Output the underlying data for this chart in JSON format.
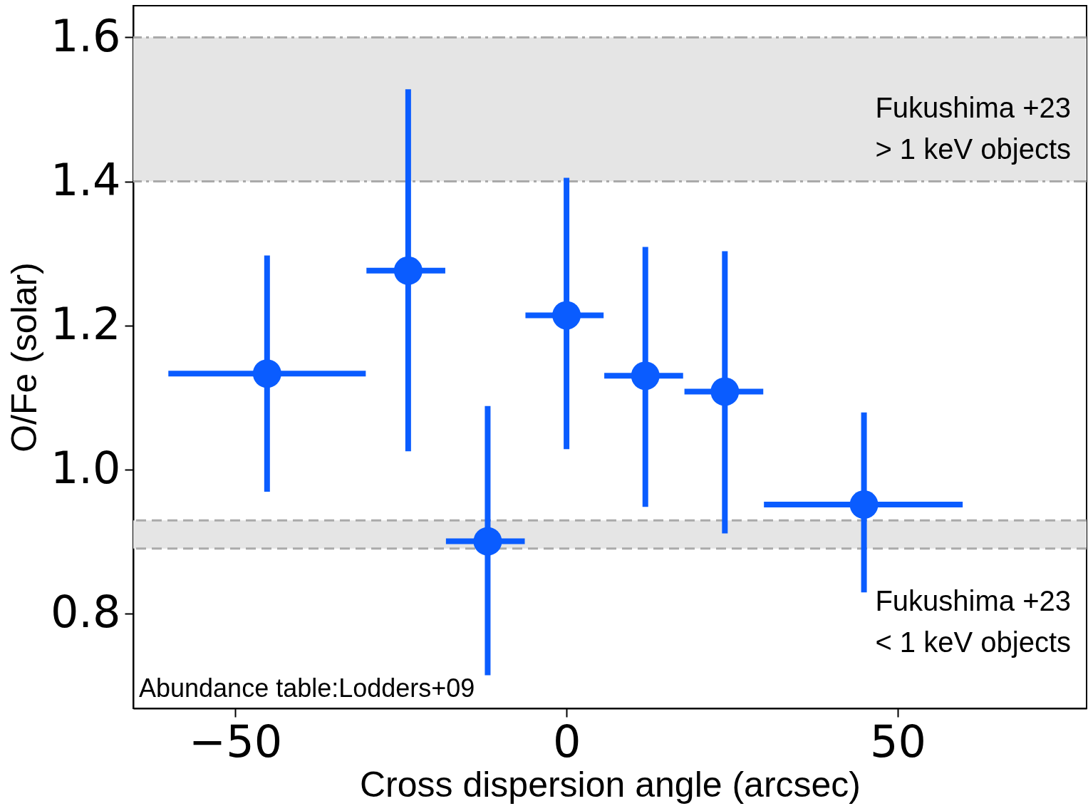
{
  "chart_data": {
    "type": "scatter",
    "xlabel": "Cross dispersion angle (arcsec)",
    "ylabel": "O/Fe (solar)",
    "xlim": [
      -65.4,
      78.5
    ],
    "ylim": [
      0.668,
      1.644
    ],
    "xticks": [
      {
        "value": -50,
        "label": "−50"
      },
      0,
      50
    ],
    "yticks": [
      0.8,
      {
        "value": 1,
        "label": "1.0"
      },
      1.2,
      1.4,
      1.6
    ],
    "marker": "circle",
    "series": [
      {
        "color": "#0a5cff",
        "x": [
          -45.2,
          -23.9,
          -11.9,
          0,
          11.9,
          23.9,
          44.9
        ],
        "values": [
          1.133,
          1.276,
          0.9,
          1.214,
          1.13,
          1.108,
          0.951
        ],
        "errors": [
          [
            0.969,
            1.297
          ],
          [
            1.025,
            1.528
          ],
          [
            0.714,
            1.088
          ],
          [
            1.028,
            1.405
          ],
          [
            0.948,
            1.309
          ],
          [
            0.911,
            1.303
          ],
          [
            0.829,
            1.079
          ]
        ],
        "xerrors": [
          [
            -60.1,
            -30.3
          ],
          [
            -30.2,
            -18.3
          ],
          [
            -18.2,
            -6.3
          ],
          [
            -6.2,
            5.6
          ],
          [
            5.7,
            17.6
          ],
          [
            17.8,
            29.7
          ],
          [
            29.8,
            59.8
          ]
        ]
      }
    ],
    "bands": [
      {
        "axis": "y",
        "from": 1.4,
        "to": 1.6,
        "label": "Fukushima +23\n> 1 keV objects",
        "color": "#e5e5e5"
      },
      {
        "axis": "y",
        "from": 0.89,
        "to": 0.929,
        "label": "Fukushima +23\n< 1 keV objects",
        "color": "#e5e5e5"
      }
    ],
    "ref_lines": [
      {
        "axis": "y",
        "value": 1.4,
        "color": "#aaaaaa",
        "line_style": "dashdot"
      },
      {
        "axis": "y",
        "value": 1.6,
        "color": "#aaaaaa",
        "line_style": "dashdot"
      },
      {
        "axis": "y",
        "value": 0.89,
        "color": "#aaaaaa",
        "line_style": "dashed"
      },
      {
        "axis": "y",
        "value": 0.929,
        "color": "#aaaaaa",
        "line_style": "dashed"
      }
    ],
    "annotations": [
      "Abundance table:Lodders+09"
    ]
  }
}
